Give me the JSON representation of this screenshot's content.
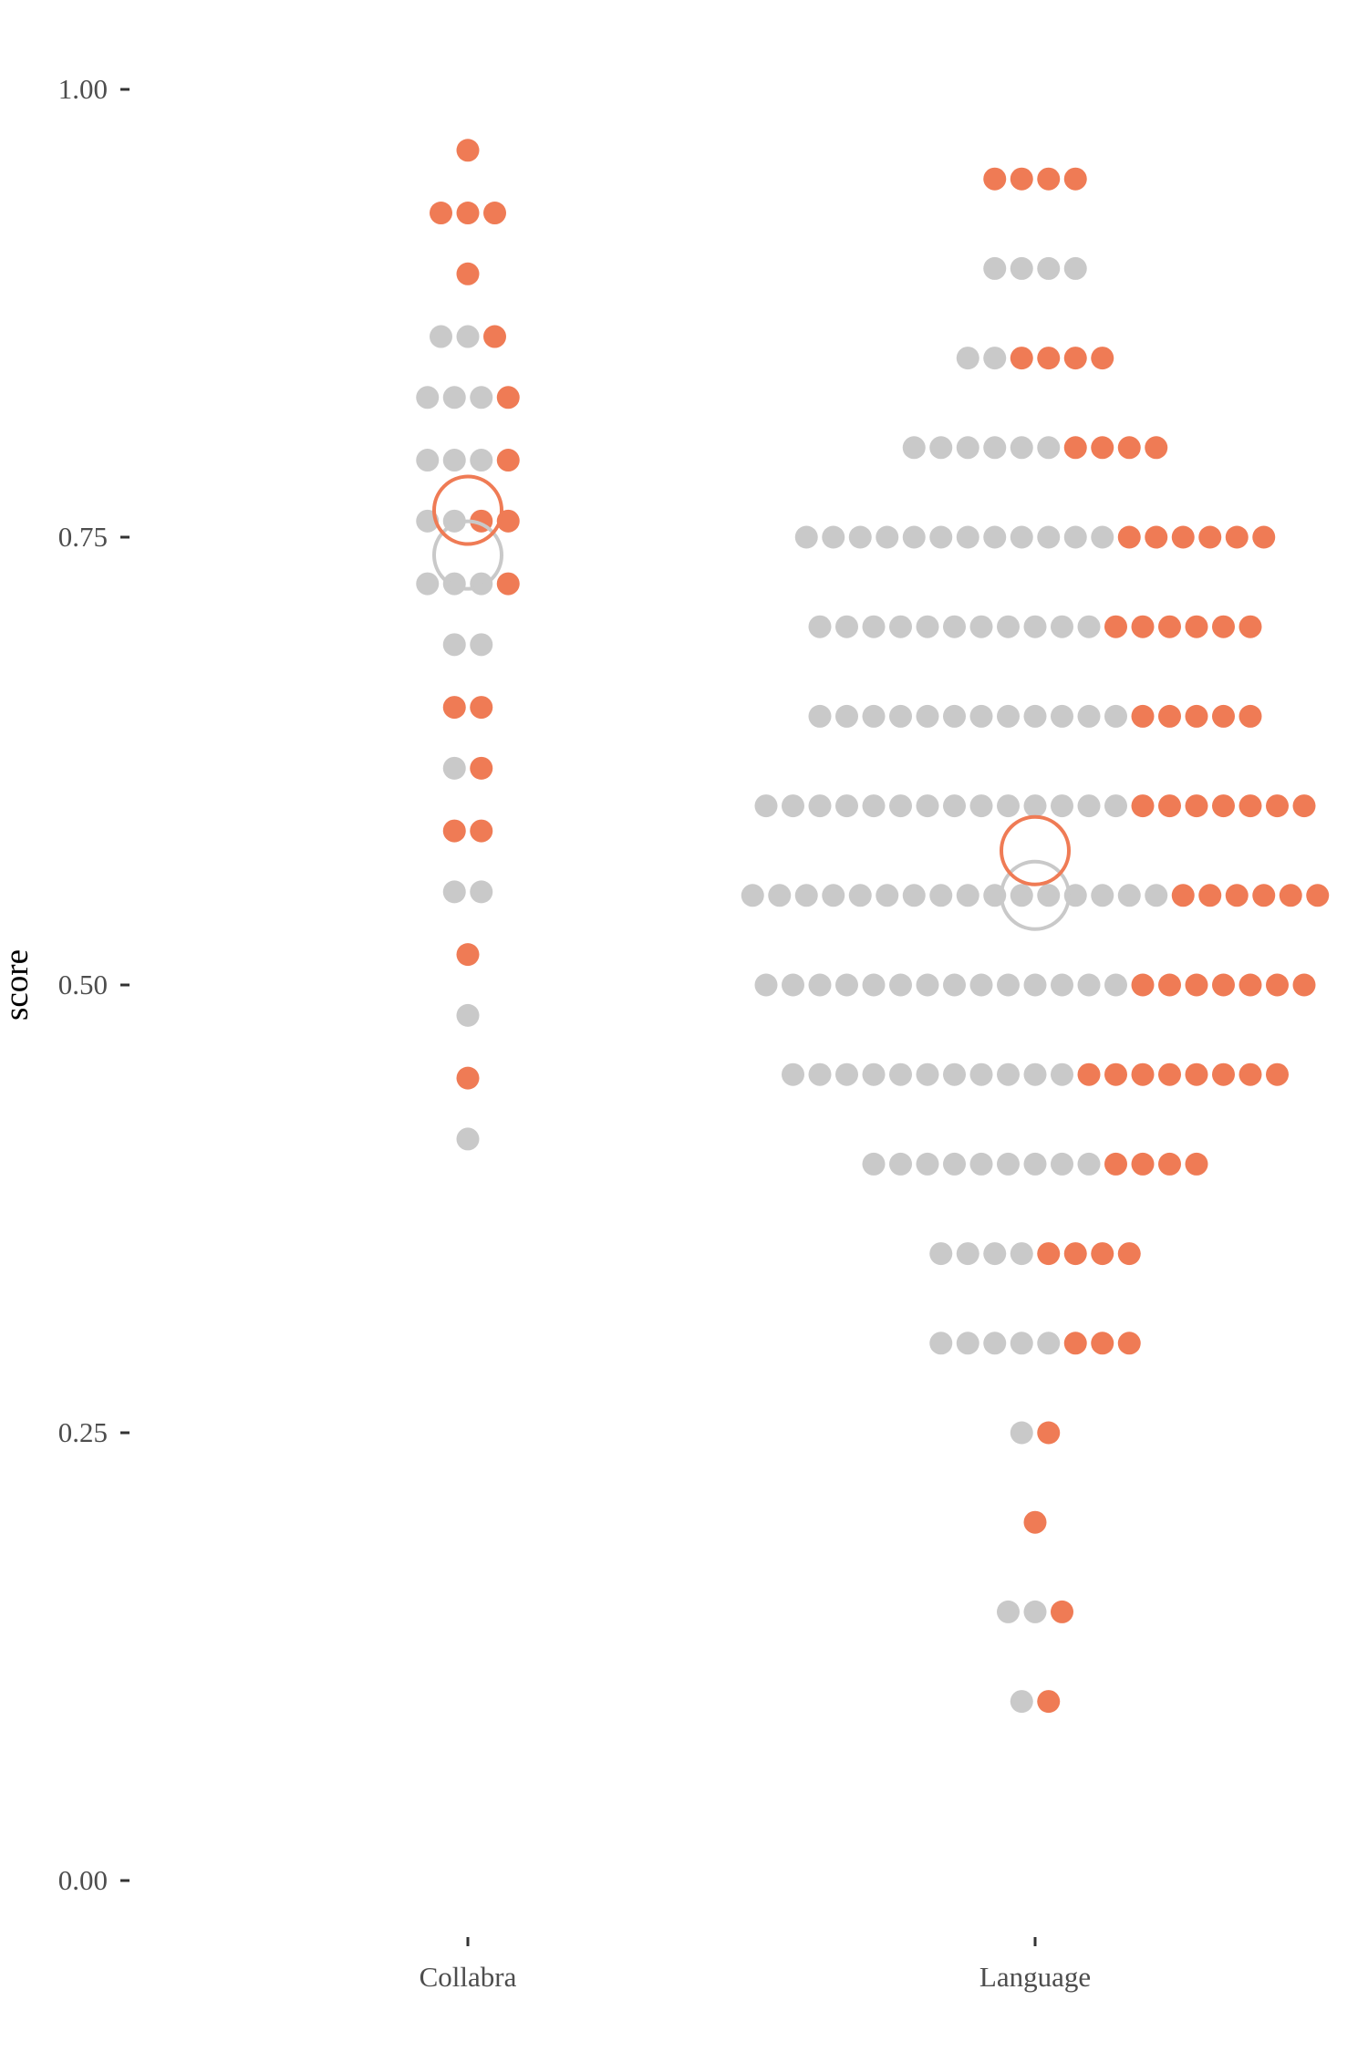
{
  "chart_data": {
    "type": "dotplot",
    "ylabel": "score",
    "xlabel": "",
    "ylim": [
      -0.05,
      1.05
    ],
    "y_ticks": [
      "0.00",
      "0.25",
      "0.50",
      "0.75",
      "1.00"
    ],
    "y_tick_values": [
      0,
      0.25,
      0.5,
      0.75,
      1.0
    ],
    "categories": [
      "Collabra",
      "Language"
    ],
    "colors": {
      "gray": "#c9c9c9",
      "orange": "#ef7b55"
    },
    "grid": false,
    "groups": [
      {
        "category": "Collabra",
        "mean_gray": 0.74,
        "mean_orange": 0.765,
        "rows": [
          {
            "y": 0.966,
            "gray": 0,
            "orange": 1
          },
          {
            "y": 0.931,
            "gray": 0,
            "orange": 3
          },
          {
            "y": 0.897,
            "gray": 0,
            "orange": 1
          },
          {
            "y": 0.862,
            "gray": 2,
            "orange": 1
          },
          {
            "y": 0.828,
            "gray": 3,
            "orange": 1
          },
          {
            "y": 0.793,
            "gray": 3,
            "orange": 1
          },
          {
            "y": 0.759,
            "gray": 2,
            "orange": 2
          },
          {
            "y": 0.724,
            "gray": 3,
            "orange": 1
          },
          {
            "y": 0.69,
            "gray": 2,
            "orange": 0
          },
          {
            "y": 0.655,
            "gray": 0,
            "orange": 2
          },
          {
            "y": 0.621,
            "gray": 1,
            "orange": 1
          },
          {
            "y": 0.586,
            "gray": 0,
            "orange": 2
          },
          {
            "y": 0.552,
            "gray": 2,
            "orange": 0
          },
          {
            "y": 0.517,
            "gray": 0,
            "orange": 1
          },
          {
            "y": 0.483,
            "gray": 1,
            "orange": 0
          },
          {
            "y": 0.448,
            "gray": 0,
            "orange": 1
          },
          {
            "y": 0.414,
            "gray": 1,
            "orange": 0
          }
        ]
      },
      {
        "category": "Language",
        "mean_gray": 0.55,
        "mean_orange": 0.575,
        "rows": [
          {
            "y": 0.95,
            "gray": 0,
            "orange": 4
          },
          {
            "y": 0.9,
            "gray": 4,
            "orange": 0
          },
          {
            "y": 0.85,
            "gray": 2,
            "orange": 4
          },
          {
            "y": 0.8,
            "gray": 6,
            "orange": 4
          },
          {
            "y": 0.75,
            "gray": 12,
            "orange": 6
          },
          {
            "y": 0.7,
            "gray": 11,
            "orange": 6
          },
          {
            "y": 0.65,
            "gray": 12,
            "orange": 5
          },
          {
            "y": 0.6,
            "gray": 14,
            "orange": 7
          },
          {
            "y": 0.55,
            "gray": 16,
            "orange": 6
          },
          {
            "y": 0.5,
            "gray": 14,
            "orange": 7
          },
          {
            "y": 0.45,
            "gray": 11,
            "orange": 8
          },
          {
            "y": 0.4,
            "gray": 9,
            "orange": 4
          },
          {
            "y": 0.35,
            "gray": 4,
            "orange": 4
          },
          {
            "y": 0.3,
            "gray": 5,
            "orange": 3
          },
          {
            "y": 0.25,
            "gray": 1,
            "orange": 1
          },
          {
            "y": 0.2,
            "gray": 0,
            "orange": 1
          },
          {
            "y": 0.15,
            "gray": 2,
            "orange": 1
          },
          {
            "y": 0.1,
            "gray": 1,
            "orange": 1
          }
        ]
      }
    ]
  }
}
